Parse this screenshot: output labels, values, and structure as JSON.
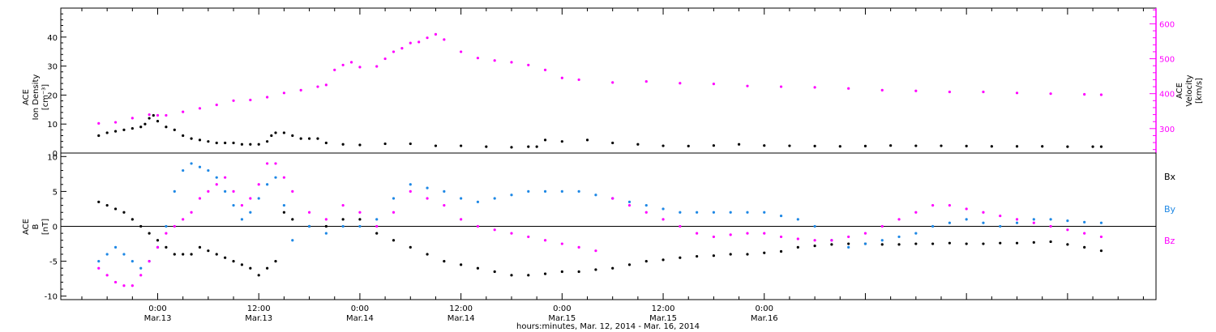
{
  "chart_data": [
    {
      "type": "scatter",
      "panel": "top",
      "ylabel_left": [
        "ACE",
        "Ion Density",
        "[cm⁻³]"
      ],
      "ylabel_right": [
        "ACE",
        "Velocity",
        "[km/s]"
      ],
      "ylim_left": [
        0,
        50
      ],
      "ylim_right": [
        230,
        645
      ],
      "left_ticks": [
        "0",
        "10",
        "20",
        "30",
        "40"
      ],
      "right_ticks": [
        "300",
        "400",
        "500",
        "600"
      ],
      "series": [
        {
          "axis": "left",
          "color": "#000000",
          "x": [
            -7,
            -6,
            -5,
            -4,
            -3,
            -2,
            -1.5,
            -1,
            -0.5,
            0,
            1,
            2,
            3,
            4,
            5,
            6,
            7,
            8,
            9,
            10,
            11,
            12,
            13,
            13.5,
            14,
            15,
            16,
            17,
            18,
            19,
            20,
            22,
            24,
            27,
            30,
            33,
            36,
            39,
            42,
            44,
            45,
            46,
            48,
            51,
            54,
            57,
            60,
            63,
            66,
            69,
            72,
            75,
            78,
            81,
            84,
            87,
            90,
            93,
            96,
            99,
            102,
            105,
            108,
            111,
            112
          ],
          "values": [
            6,
            7,
            7.5,
            8,
            8.5,
            9,
            10,
            12,
            13,
            11,
            9,
            8,
            6,
            5,
            4.5,
            4,
            3.5,
            3.5,
            3.5,
            3,
            3,
            3,
            4,
            6,
            7,
            7,
            6,
            5,
            5,
            5,
            3.5,
            3,
            2.8,
            3.2,
            3.2,
            2.5,
            2.5,
            2.2,
            2,
            2.2,
            2.2,
            4.5,
            4,
            4.5,
            3.5,
            3,
            2.5,
            2.4,
            2.6,
            3,
            2.6,
            2.5,
            2.4,
            2.3,
            2.4,
            2.6,
            2.5,
            2.5,
            2.4,
            2.3,
            2.3,
            2.3,
            2.2,
            2.2,
            2.2
          ]
        },
        {
          "axis": "right",
          "color": "#ff00ff",
          "x": [
            -7,
            -5,
            -3,
            -1,
            0,
            1,
            3,
            5,
            7,
            9,
            11,
            13,
            15,
            17,
            19,
            20,
            21,
            22,
            23,
            24,
            26,
            27,
            28,
            29,
            30,
            31,
            32,
            33,
            34,
            36,
            38,
            40,
            42,
            44,
            46,
            48,
            50,
            54,
            58,
            62,
            66,
            70,
            74,
            78,
            82,
            86,
            90,
            94,
            98,
            102,
            106,
            110,
            112
          ],
          "values": [
            315,
            318,
            330,
            340,
            338,
            338,
            348,
            358,
            368,
            380,
            382,
            390,
            402,
            410,
            420,
            425,
            468,
            482,
            490,
            476,
            478,
            500,
            520,
            530,
            545,
            548,
            560,
            570,
            555,
            520,
            502,
            495,
            490,
            482,
            468,
            445,
            440,
            432,
            435,
            430,
            428,
            422,
            420,
            418,
            415,
            410,
            408,
            405,
            405,
            402,
            400,
            398,
            397
          ]
        }
      ]
    },
    {
      "type": "scatter",
      "panel": "bottom",
      "ylabel_left": [
        "ACE",
        "B",
        "[nT]"
      ],
      "ylim": [
        -10.5,
        10.5
      ],
      "left_ticks": [
        "-10",
        "-5",
        "0",
        "5",
        "10"
      ],
      "legend": [
        "Bx",
        "By",
        "Bz"
      ],
      "legend_position": "right",
      "series": [
        {
          "name": "Bx",
          "color": "#000000",
          "x": [
            -7,
            -6,
            -5,
            -4,
            -3,
            -2,
            -1,
            0,
            1,
            2,
            3,
            4,
            5,
            6,
            7,
            8,
            9,
            10,
            11,
            12,
            13,
            14,
            15,
            16,
            18,
            20,
            22,
            24,
            26,
            28,
            30,
            32,
            34,
            36,
            38,
            40,
            42,
            44,
            46,
            48,
            50,
            52,
            54,
            56,
            58,
            60,
            62,
            64,
            66,
            68,
            70,
            72,
            74,
            76,
            78,
            80,
            82,
            84,
            86,
            88,
            90,
            92,
            94,
            96,
            98,
            100,
            102,
            104,
            106,
            108,
            110,
            112
          ],
          "values": [
            3.5,
            3,
            2.5,
            2,
            1,
            0,
            -1,
            -2,
            -3,
            -4,
            -4,
            -4,
            -3,
            -3.5,
            -4,
            -4.5,
            -5,
            -5.5,
            -6,
            -7,
            -6,
            -5,
            2,
            1,
            0,
            0,
            1,
            1,
            -1,
            -2,
            -3,
            -4,
            -5,
            -5.5,
            -6,
            -6.5,
            -7,
            -7,
            -6.8,
            -6.5,
            -6.5,
            -6.2,
            -6,
            -5.5,
            -5,
            -4.8,
            -4.5,
            -4.3,
            -4.2,
            -4,
            -4,
            -3.8,
            -3.6,
            -3,
            -2.8,
            -2.6,
            -2.5,
            -2.5,
            -2.6,
            -2.6,
            -2.5,
            -2.5,
            -2.4,
            -2.5,
            -2.5,
            -2.4,
            -2.4,
            -2.3,
            -2.2,
            -2.6,
            -3,
            -3.5
          ]
        },
        {
          "name": "By",
          "color": "#1e88e5",
          "x": [
            -7,
            -6,
            -5,
            -4,
            -3,
            -2,
            -1,
            0,
            1,
            2,
            3,
            4,
            5,
            6,
            7,
            8,
            9,
            10,
            11,
            12,
            13,
            14,
            15,
            16,
            18,
            20,
            22,
            24,
            26,
            28,
            30,
            32,
            34,
            36,
            38,
            40,
            42,
            44,
            46,
            48,
            50,
            52,
            54,
            56,
            58,
            60,
            62,
            64,
            66,
            68,
            70,
            72,
            74,
            76,
            78,
            80,
            82,
            84,
            86,
            88,
            90,
            92,
            94,
            96,
            98,
            100,
            102,
            104,
            106,
            108,
            110,
            112
          ],
          "values": [
            -5,
            -4,
            -3,
            -4,
            -5,
            -6,
            -5,
            -3,
            0,
            5,
            8,
            9,
            8.5,
            8,
            7,
            5,
            3,
            1,
            2,
            4,
            6,
            7,
            3,
            -2,
            0,
            -1,
            0,
            0,
            1,
            4,
            6,
            5.5,
            5,
            4,
            3.5,
            4,
            4.5,
            5,
            5,
            5,
            5,
            4.5,
            4,
            3.5,
            3,
            2.5,
            2,
            2,
            2,
            2,
            2,
            2,
            1.5,
            1,
            0,
            -2,
            -3,
            -2.5,
            -2,
            -1.5,
            -1,
            0,
            0.5,
            1,
            0.5,
            0,
            0.5,
            1,
            1,
            0.8,
            0.6,
            0.5
          ]
        },
        {
          "name": "Bz",
          "color": "#ff00ff",
          "x": [
            -7,
            -6,
            -5,
            -4,
            -3,
            -2,
            -1,
            0,
            1,
            2,
            3,
            4,
            5,
            6,
            7,
            8,
            9,
            10,
            11,
            12,
            13,
            14,
            15,
            16,
            18,
            20,
            22,
            24,
            26,
            28,
            30,
            32,
            34,
            36,
            38,
            40,
            42,
            44,
            46,
            48,
            50,
            52,
            54,
            56,
            58,
            60,
            62,
            64,
            66,
            68,
            70,
            72,
            74,
            76,
            78,
            80,
            82,
            84,
            86,
            88,
            90,
            92,
            94,
            96,
            98,
            100,
            102,
            104,
            106,
            108,
            110,
            112
          ],
          "values": [
            -6,
            -7,
            -8,
            -8.5,
            -8.5,
            -7,
            -5,
            -3,
            -1,
            0,
            1,
            2,
            4,
            5,
            6,
            7,
            5,
            3,
            4,
            6,
            9,
            9,
            7,
            5,
            2,
            1,
            3,
            2,
            0,
            2,
            5,
            4,
            3,
            1,
            0,
            -0.5,
            -1,
            -1.5,
            -2,
            -2.5,
            -3,
            -3.5,
            4,
            3,
            2,
            1,
            0,
            -1,
            -1.5,
            -1.2,
            -1,
            -1,
            -1.5,
            -1.8,
            -2,
            -2,
            -1.5,
            -1,
            0,
            1,
            2,
            3,
            3,
            2.5,
            2,
            1.5,
            1,
            0.5,
            0,
            -0.5,
            -1,
            -1.5
          ]
        }
      ]
    }
  ],
  "x_axis": {
    "label": "hours:minutes, Mar. 12, 2014 - Mar. 16, 2014",
    "xlim": [
      -11.5,
      118.5
    ],
    "ticks": [
      {
        "x": 0,
        "time": "0:00",
        "date": "Mar.13"
      },
      {
        "x": 12,
        "time": "12:00",
        "date": "Mar.13"
      },
      {
        "x": 24,
        "time": "0:00",
        "date": "Mar.14"
      },
      {
        "x": 36,
        "time": "12:00",
        "date": "Mar.14"
      },
      {
        "x": 48,
        "time": "0:00",
        "date": "Mar.15"
      },
      {
        "x": 60,
        "time": "12:00",
        "date": "Mar.15"
      },
      {
        "x": 72,
        "time": "0:00",
        "date": "Mar.16"
      }
    ]
  },
  "colors": {
    "magenta": "#ff00ff",
    "blue": "#1e88e5",
    "black": "#000000"
  }
}
